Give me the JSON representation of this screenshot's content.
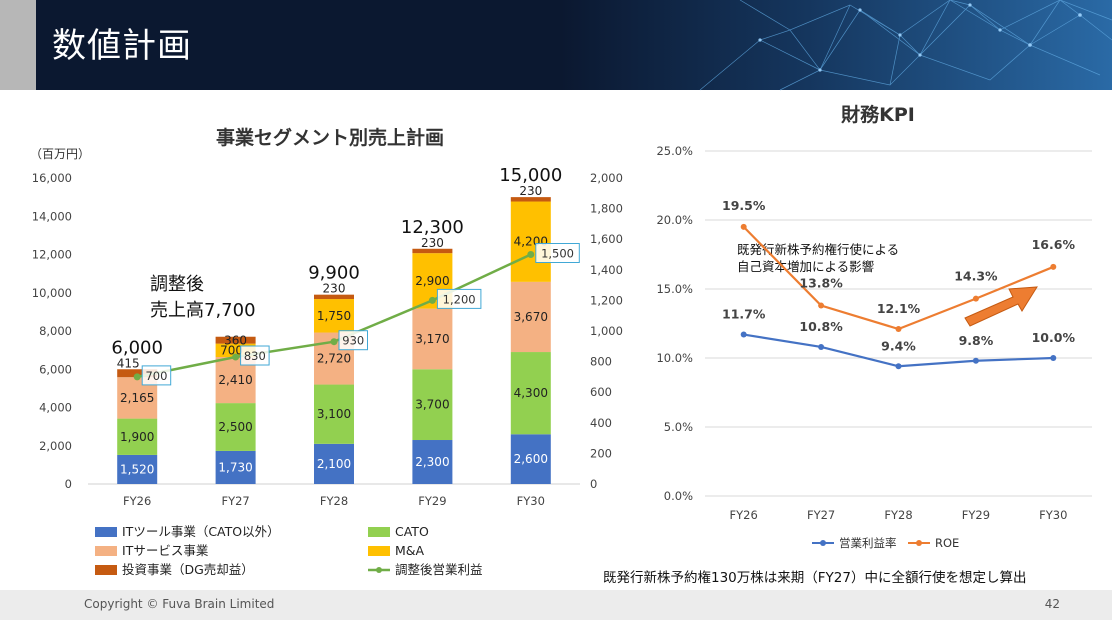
{
  "page": {
    "title": "数値計画",
    "copyright": "Copyright © Fuva Brain Limited",
    "page_number": "42",
    "note": "既発行新株予約権130万株は来期（FY27）中に全額行使を想定し算出"
  },
  "colors": {
    "header_bg": "#0b1830",
    "it_tools": "#4472c4",
    "cato": "#92d050",
    "it_services": "#f4b183",
    "ma": "#ffc000",
    "investment": "#c55a11",
    "adj_op_profit": "#70ad47",
    "op_margin": "#4472c4",
    "roe": "#ed7d31"
  },
  "chart_data": [
    {
      "type": "bar",
      "stacked": true,
      "title": "事業セグメント別売上計画",
      "unit_label": "（百万円）",
      "categories": [
        "FY26",
        "FY27",
        "FY28",
        "FY29",
        "FY30"
      ],
      "ylim": [
        0,
        16000
      ],
      "y_ticks": [
        "0",
        "2,000",
        "4,000",
        "6,000",
        "8,000",
        "10,000",
        "12,000",
        "14,000",
        "16,000"
      ],
      "y2lim": [
        0,
        2000
      ],
      "y2_ticks": [
        "0",
        "200",
        "400",
        "600",
        "800",
        "1,000",
        "1,200",
        "1,400",
        "1,600",
        "1,800",
        "2,000"
      ],
      "series": [
        {
          "name": "ITツール事業（CATO以外）",
          "values": [
            1520,
            1730,
            2100,
            2300,
            2600
          ],
          "labels": [
            "1,520",
            "1,730",
            "2,100",
            "2,300",
            "2,600"
          ]
        },
        {
          "name": "CATO",
          "values": [
            1900,
            2500,
            3100,
            3700,
            4300
          ],
          "labels": [
            "1,900",
            "2,500",
            "3,100",
            "3,700",
            "4,300"
          ]
        },
        {
          "name": "ITサービス事業",
          "values": [
            2165,
            2410,
            2720,
            3170,
            3670
          ],
          "labels": [
            "2,165",
            "2,410",
            "2,720",
            "3,170",
            "3,670"
          ]
        },
        {
          "name": "M&A",
          "values": [
            0,
            700,
            1750,
            2900,
            4200
          ],
          "labels": [
            "",
            "700",
            "1,750",
            "2,900",
            "4,200"
          ]
        },
        {
          "name": "投資事業（DG売却益）",
          "values": [
            415,
            360,
            230,
            230,
            230
          ],
          "labels": [
            "415",
            "360",
            "230",
            "230",
            "230"
          ]
        }
      ],
      "line_series": {
        "name": "調整後営業利益",
        "axis": "secondary",
        "values": [
          700,
          830,
          930,
          1200,
          1500
        ],
        "labels": [
          "700",
          "830",
          "930",
          "1,200",
          "1,500"
        ]
      },
      "totals": [
        "6,000",
        "",
        "9,900",
        "12,300",
        "15,000"
      ],
      "annotation": {
        "line1": "調整後",
        "line2": "売上高7,700"
      }
    },
    {
      "type": "line",
      "title": "財務KPI",
      "categories": [
        "FY26",
        "FY27",
        "FY28",
        "FY29",
        "FY30"
      ],
      "ylim": [
        0,
        25
      ],
      "y_ticks": [
        "0.0%",
        "5.0%",
        "10.0%",
        "15.0%",
        "20.0%",
        "25.0%"
      ],
      "series": [
        {
          "name": "営業利益率",
          "values": [
            11.7,
            10.8,
            9.4,
            9.8,
            10.0
          ],
          "labels": [
            "11.7%",
            "10.8%",
            "9.4%",
            "9.8%",
            "10.0%"
          ]
        },
        {
          "name": "ROE",
          "values": [
            19.5,
            13.8,
            12.1,
            14.3,
            16.6
          ],
          "labels": [
            "19.5%",
            "13.8%",
            "12.1%",
            "14.3%",
            "16.6%"
          ]
        }
      ],
      "annotation": {
        "line1": "既発行新株予約権行使による",
        "line2": "自己資本増加による影響"
      }
    }
  ]
}
